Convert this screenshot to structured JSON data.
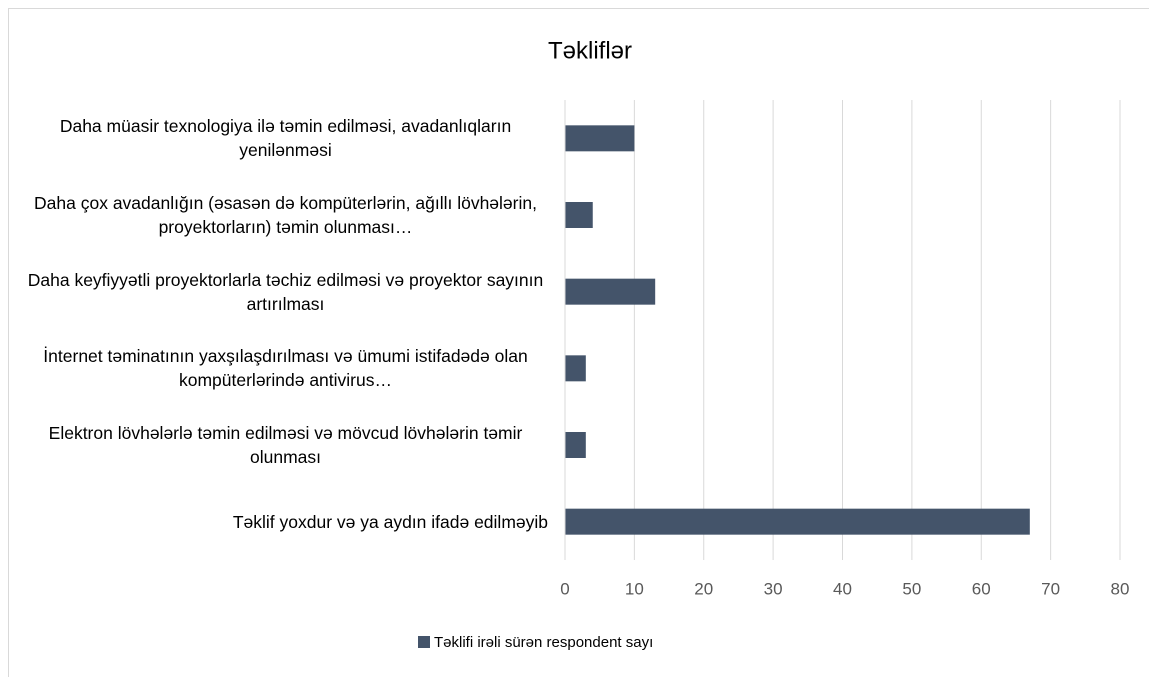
{
  "chart_data": {
    "type": "barh",
    "title": "Təkliflər",
    "categories": [
      "Daha müasir texnologiya ilə təmin edilməsi, avadanlıqların yenilənməsi",
      "Daha çox avadanlığın (əsasən də kompüterlərin, ağıllı lövhələrin, proyektorların) təmin olunması…",
      "Daha keyfiyyətli proyektorlarla təchiz edilməsi və proyektor sayının artırılması",
      "İnternet təminatının yaxşılaşdırılması və ümumi istifadədə olan kompüterlərində antivirus…",
      "Elektron lövhələrlə təmin edilməsi və mövcud lövhələrin təmir olunması",
      "Təklif yoxdur və ya aydın ifadə edilməyib"
    ],
    "series": [
      {
        "name": "Təklifi irəli sürən respondent sayı",
        "color": "#44546a",
        "values": [
          10,
          4,
          13,
          3,
          3,
          67
        ]
      }
    ],
    "xlim": [
      0,
      80
    ],
    "xticks": [
      0,
      10,
      20,
      30,
      40,
      50,
      60,
      70,
      80
    ],
    "grid": true,
    "legend": "bottom"
  }
}
